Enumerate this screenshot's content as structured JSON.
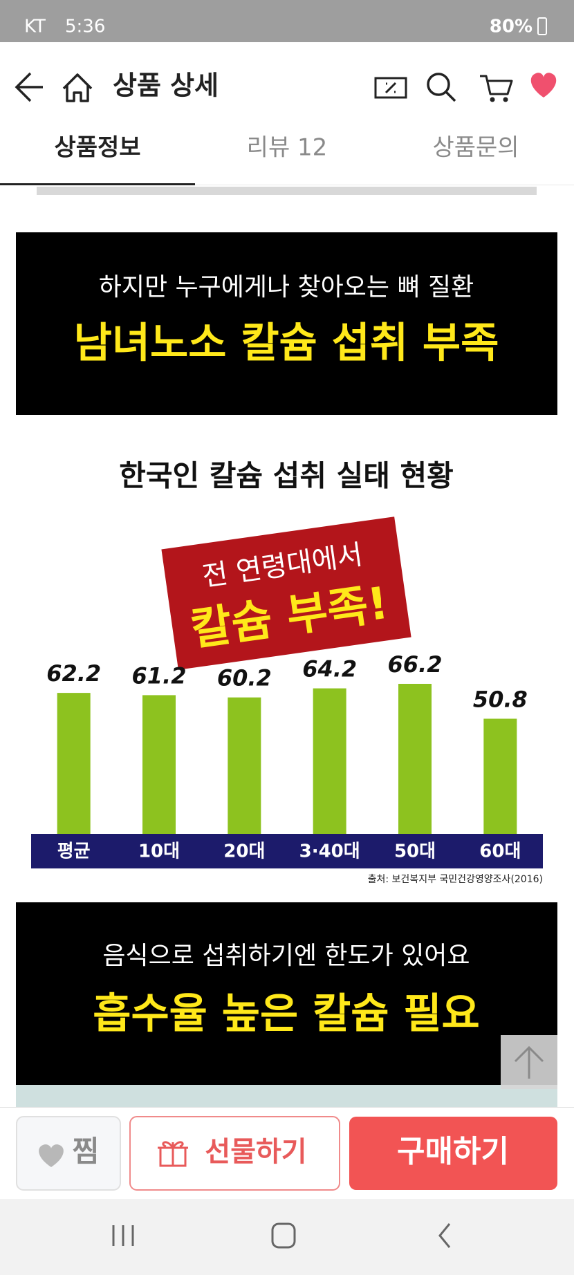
{
  "status_bar": {
    "carrier": "KT",
    "time": "5:36",
    "battery": "80%"
  },
  "header": {
    "title": "상품 상세"
  },
  "tabs": [
    "상품정보",
    "리뷰 12",
    "상품문의"
  ],
  "banner_top": {
    "line1": "하지만 누구에게나 찾아오는 뼈 질환",
    "line2": "남녀노소 칼슘 섭취 부족"
  },
  "chart_data": {
    "type": "bar",
    "title": "한국인 칼슘 섭취 실태 현황",
    "annotations": [
      "전 연령대에서",
      "칼슘 부족!"
    ],
    "categories": [
      "평균",
      "10대",
      "20대",
      "3·40대",
      "50대",
      "60대"
    ],
    "values": [
      62.2,
      61.2,
      60.2,
      64.2,
      66.2,
      50.8
    ],
    "color": "#8dc21f",
    "source": "출처: 보건복지부 국민건강영양조사(2016)"
  },
  "banner_bottom": {
    "line1": "음식으로 섭취하기엔 한도가 있어요",
    "line2": "흡수율 높은 칼슘 필요"
  },
  "bottom_bar": {
    "wish": "찜",
    "gift": "선물하기",
    "buy": "구매하기"
  }
}
